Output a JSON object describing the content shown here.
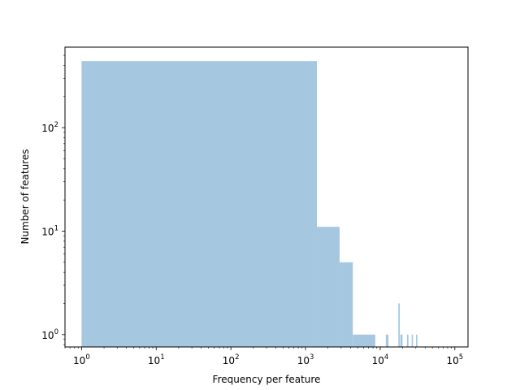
{
  "chart_data": {
    "type": "bar",
    "subtype": "histogram",
    "title": "",
    "xlabel": "Frequency per feature",
    "ylabel": "Number of features",
    "xscale": "log",
    "yscale": "log",
    "xlim": [
      0.6,
      150000
    ],
    "ylim": [
      0.76,
      600
    ],
    "bar_color": "#a5c8e0",
    "grid": false,
    "legend": "none",
    "x_ticks": [
      {
        "base": "10",
        "exp": "0",
        "value": 1
      },
      {
        "base": "10",
        "exp": "1",
        "value": 10
      },
      {
        "base": "10",
        "exp": "2",
        "value": 100
      },
      {
        "base": "10",
        "exp": "3",
        "value": 1000
      },
      {
        "base": "10",
        "exp": "4",
        "value": 10000
      },
      {
        "base": "10",
        "exp": "5",
        "value": 100000
      }
    ],
    "y_ticks": [
      {
        "base": "10",
        "exp": "0",
        "value": 1
      },
      {
        "base": "10",
        "exp": "1",
        "value": 10
      },
      {
        "base": "10",
        "exp": "2",
        "value": 100
      }
    ],
    "bins": [
      {
        "x0": 1,
        "x1": 1420,
        "count": 440
      },
      {
        "x0": 1420,
        "x1": 2860,
        "count": 11
      },
      {
        "x0": 2860,
        "x1": 4300,
        "count": 5
      },
      {
        "x0": 4300,
        "x1": 8600,
        "count": 1
      },
      {
        "x0": 11900,
        "x1": 12900,
        "count": 1
      },
      {
        "x0": 17500,
        "x1": 18300,
        "count": 2
      },
      {
        "x0": 18600,
        "x1": 19900,
        "count": 1
      },
      {
        "x0": 22800,
        "x1": 23900,
        "count": 1
      },
      {
        "x0": 26400,
        "x1": 27500,
        "count": 1
      },
      {
        "x0": 30200,
        "x1": 31500,
        "count": 1
      }
    ]
  }
}
